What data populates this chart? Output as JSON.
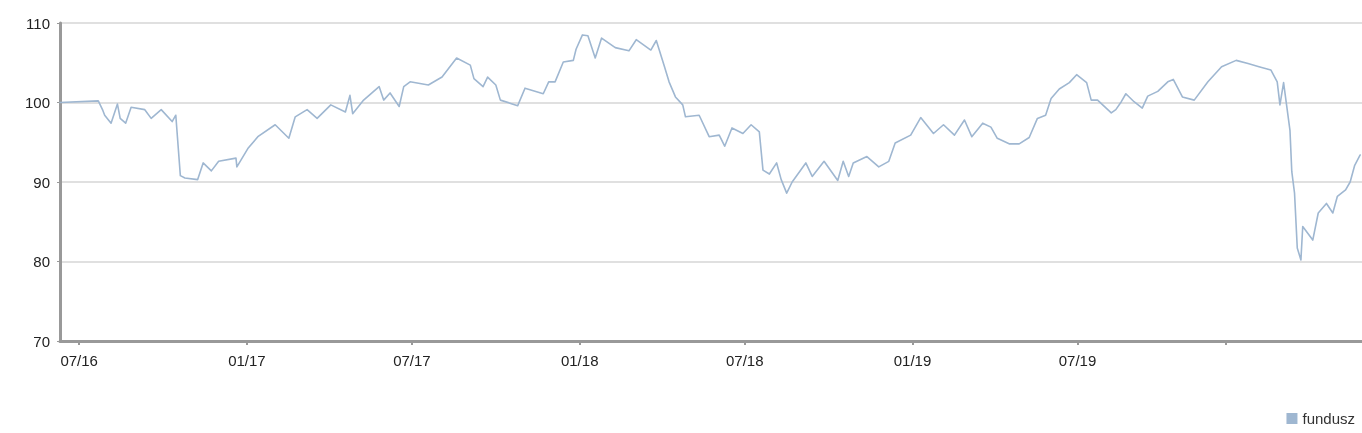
{
  "chart_data": {
    "type": "line",
    "x": [
      "2016-06-10",
      "2016-07-22",
      "2016-07-27",
      "2016-07-29",
      "2016-08-05",
      "2016-08-12",
      "2016-08-15",
      "2016-08-21",
      "2016-08-27",
      "2016-09-11",
      "2016-09-18",
      "2016-09-29",
      "2016-10-11",
      "2016-10-15",
      "2016-10-20",
      "2016-10-25",
      "2016-11-08",
      "2016-11-14",
      "2016-11-23",
      "2016-12-01",
      "2016-12-20",
      "2016-12-21",
      "2017-01-02",
      "2017-01-13",
      "2017-02-01",
      "2017-02-16",
      "2017-02-23",
      "2017-03-08",
      "2017-03-19",
      "2017-04-03",
      "2017-04-19",
      "2017-04-24",
      "2017-04-27",
      "2017-05-09",
      "2017-05-26",
      "2017-05-31",
      "2017-06-07",
      "2017-06-17",
      "2017-06-22",
      "2017-06-29",
      "2017-07-19",
      "2017-08-03",
      "2017-08-19",
      "2017-09-03",
      "2017-09-07",
      "2017-09-17",
      "2017-09-22",
      "2017-10-01",
      "2017-10-06",
      "2017-10-25",
      "2017-11-02",
      "2017-11-22",
      "2017-11-28",
      "2017-12-05",
      "2017-12-14",
      "2017-12-25",
      "2017-12-28",
      "2018-01-04",
      "2018-01-10",
      "2018-01-18",
      "2018-01-25",
      "2018-02-09",
      "2018-02-24",
      "2018-03-04",
      "2018-03-20",
      "2018-03-26",
      "2018-04-04",
      "2018-04-09",
      "2018-04-16",
      "2018-04-24",
      "2018-04-27",
      "2018-05-12",
      "2018-05-23",
      "2018-06-03",
      "2018-06-09",
      "2018-06-17",
      "2018-06-29",
      "2018-07-08",
      "2018-07-17",
      "2018-07-21",
      "2018-07-28",
      "2018-08-05",
      "2018-08-10",
      "2018-08-16",
      "2018-08-22",
      "2018-09-06",
      "2018-09-13",
      "2018-09-26",
      "2018-10-11",
      "2018-10-17",
      "2018-10-23",
      "2018-10-28",
      "2018-11-12",
      "2018-11-25",
      "2018-12-06",
      "2018-12-13",
      "2018-12-30",
      "2019-01-10",
      "2019-01-24",
      "2019-02-04",
      "2019-02-16",
      "2019-02-27",
      "2019-03-07",
      "2019-03-19",
      "2019-03-28",
      "2019-04-04",
      "2019-04-17",
      "2019-04-28",
      "2019-05-09",
      "2019-05-18",
      "2019-05-27",
      "2019-06-02",
      "2019-06-11",
      "2019-06-22",
      "2019-06-30",
      "2019-07-11",
      "2019-07-16",
      "2019-07-23",
      "2019-08-07",
      "2019-08-12",
      "2019-08-18",
      "2019-08-23",
      "2019-09-01",
      "2019-09-10",
      "2019-09-16",
      "2019-09-27",
      "2019-10-08",
      "2019-10-14",
      "2019-10-24",
      "2019-11-06",
      "2019-11-21",
      "2019-12-06",
      "2019-12-22",
      "2020-01-04",
      "2020-01-16",
      "2020-01-29",
      "2020-02-05",
      "2020-02-08",
      "2020-02-12",
      "2020-02-19",
      "2020-02-21",
      "2020-02-24",
      "2020-02-27",
      "2020-03-02",
      "2020-03-04",
      "2020-03-15",
      "2020-03-21",
      "2020-03-30",
      "2020-04-06",
      "2020-04-11",
      "2020-04-20",
      "2020-04-25",
      "2020-04-30",
      "2020-05-06"
    ],
    "series": [
      {
        "name": "fundusz",
        "color": "#9fb7d1",
        "values": [
          100,
          100.2,
          99.0,
          98.4,
          97.4,
          99.8,
          98.0,
          97.4,
          99.4,
          99.1,
          98.0,
          99.1,
          97.6,
          98.4,
          90.8,
          90.5,
          90.3,
          92.4,
          91.4,
          92.6,
          93.0,
          91.9,
          94.2,
          95.7,
          97.2,
          95.5,
          98.2,
          99.1,
          98.0,
          99.7,
          98.8,
          100.9,
          98.6,
          100.3,
          102.0,
          100.3,
          101.2,
          99.5,
          102.0,
          102.6,
          102.2,
          103.2,
          105.6,
          104.7,
          103.0,
          102.0,
          103.2,
          102.2,
          100.3,
          99.6,
          101.8,
          101.1,
          102.6,
          102.6,
          105.1,
          105.3,
          106.7,
          108.5,
          108.4,
          105.6,
          108.1,
          106.9,
          106.5,
          107.9,
          106.6,
          107.8,
          104.5,
          102.6,
          100.7,
          99.7,
          98.2,
          98.4,
          95.7,
          95.9,
          94.5,
          96.8,
          96.1,
          97.2,
          96.3,
          91.5,
          91.0,
          92.4,
          90.3,
          88.6,
          90.0,
          92.4,
          90.7,
          92.6,
          90.2,
          92.6,
          90.7,
          92.4,
          93.2,
          91.9,
          92.6,
          94.9,
          95.9,
          98.1,
          96.1,
          97.2,
          95.9,
          97.8,
          95.7,
          97.4,
          96.9,
          95.5,
          94.8,
          94.8,
          95.6,
          98.0,
          98.4,
          100.5,
          101.7,
          102.5,
          103.5,
          102.5,
          100.3,
          100.3,
          98.7,
          99.1,
          100.1,
          101.1,
          100.1,
          99.3,
          100.8,
          101.4,
          102.6,
          102.9,
          100.7,
          100.3,
          102.6,
          104.5,
          105.3,
          104.9,
          104.5,
          104.1,
          102.6,
          99.7,
          102.5,
          96.5,
          91.3,
          88.6,
          81.7,
          80.2,
          84.4,
          82.7,
          86.1,
          87.3,
          86.1,
          88.2,
          89.0,
          90.0,
          92.1,
          93.4
        ]
      }
    ],
    "xlim": [
      "2016-06-10",
      "2020-05-08"
    ],
    "xticks": [
      {
        "value": "2016-07",
        "label": "07/16"
      },
      {
        "value": "2017-01",
        "label": "01/17"
      },
      {
        "value": "2017-07",
        "label": "07/17"
      },
      {
        "value": "2018-01",
        "label": "01/18"
      },
      {
        "value": "2018-07",
        "label": "07/18"
      },
      {
        "value": "2019-01",
        "label": "01/19"
      },
      {
        "value": "2019-07",
        "label": "07/19"
      },
      {
        "value": "2019-12-11",
        "label": null
      }
    ],
    "ylim": [
      70,
      110
    ],
    "yticks": [
      70,
      80,
      90,
      100,
      110
    ],
    "grid": "y",
    "legend": "bottom right",
    "marker": "none",
    "line_style": "solid"
  }
}
